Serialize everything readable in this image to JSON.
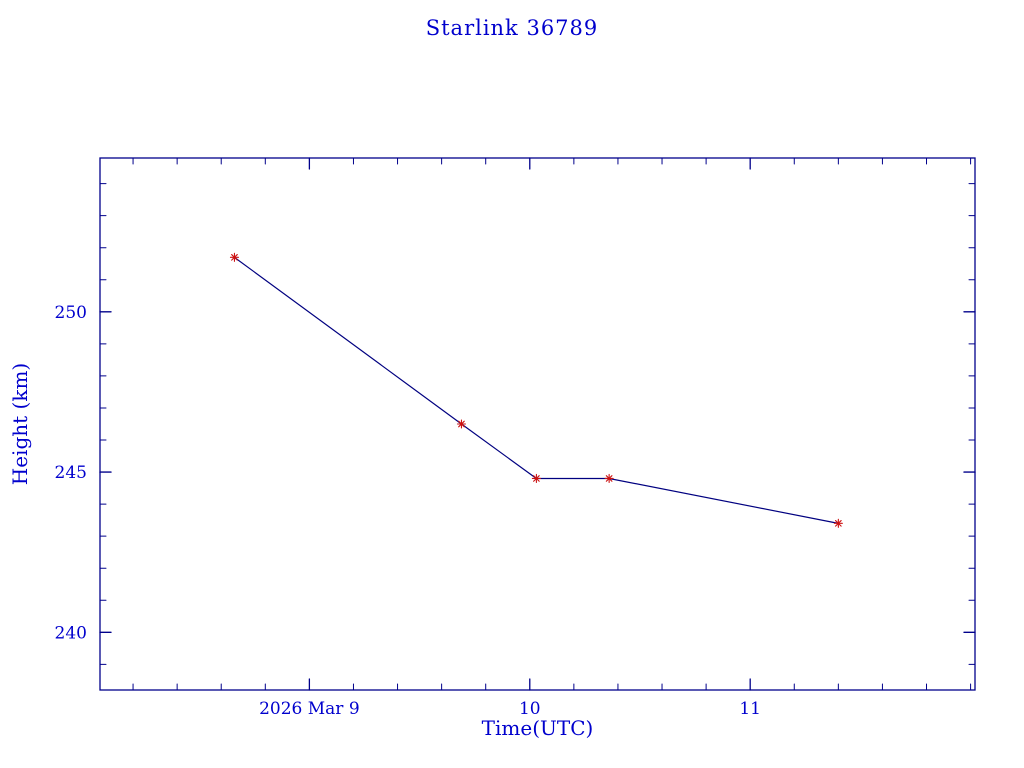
{
  "page": {
    "title": "Starlink 36789"
  },
  "chart_data": {
    "type": "line",
    "title": "Starlink 36789",
    "xlabel": "Time(UTC)",
    "ylabel": "Height (km)",
    "x": [
      8.66,
      9.69,
      10.03,
      10.36,
      11.4
    ],
    "y": [
      251.7,
      246.5,
      244.8,
      244.8,
      243.4
    ],
    "xlim": [
      8.05,
      12.02
    ],
    "ylim": [
      238.2,
      254.8
    ],
    "x_major_ticks": [
      {
        "value": 9,
        "label": "2026 Mar  9"
      },
      {
        "value": 10,
        "label": "10"
      },
      {
        "value": 11,
        "label": "11"
      }
    ],
    "x_minor_step": 0.2,
    "y_major_ticks": [
      {
        "value": 240,
        "label": "240"
      },
      {
        "value": 245,
        "label": "245"
      },
      {
        "value": 250,
        "label": "250"
      }
    ],
    "y_minor_step": 1,
    "grid": false,
    "legend": null,
    "marker": "asterisk",
    "colors": {
      "text": "#0000cd",
      "axis": "#00008b",
      "line": "#000080",
      "marker": "#cc1111"
    }
  }
}
